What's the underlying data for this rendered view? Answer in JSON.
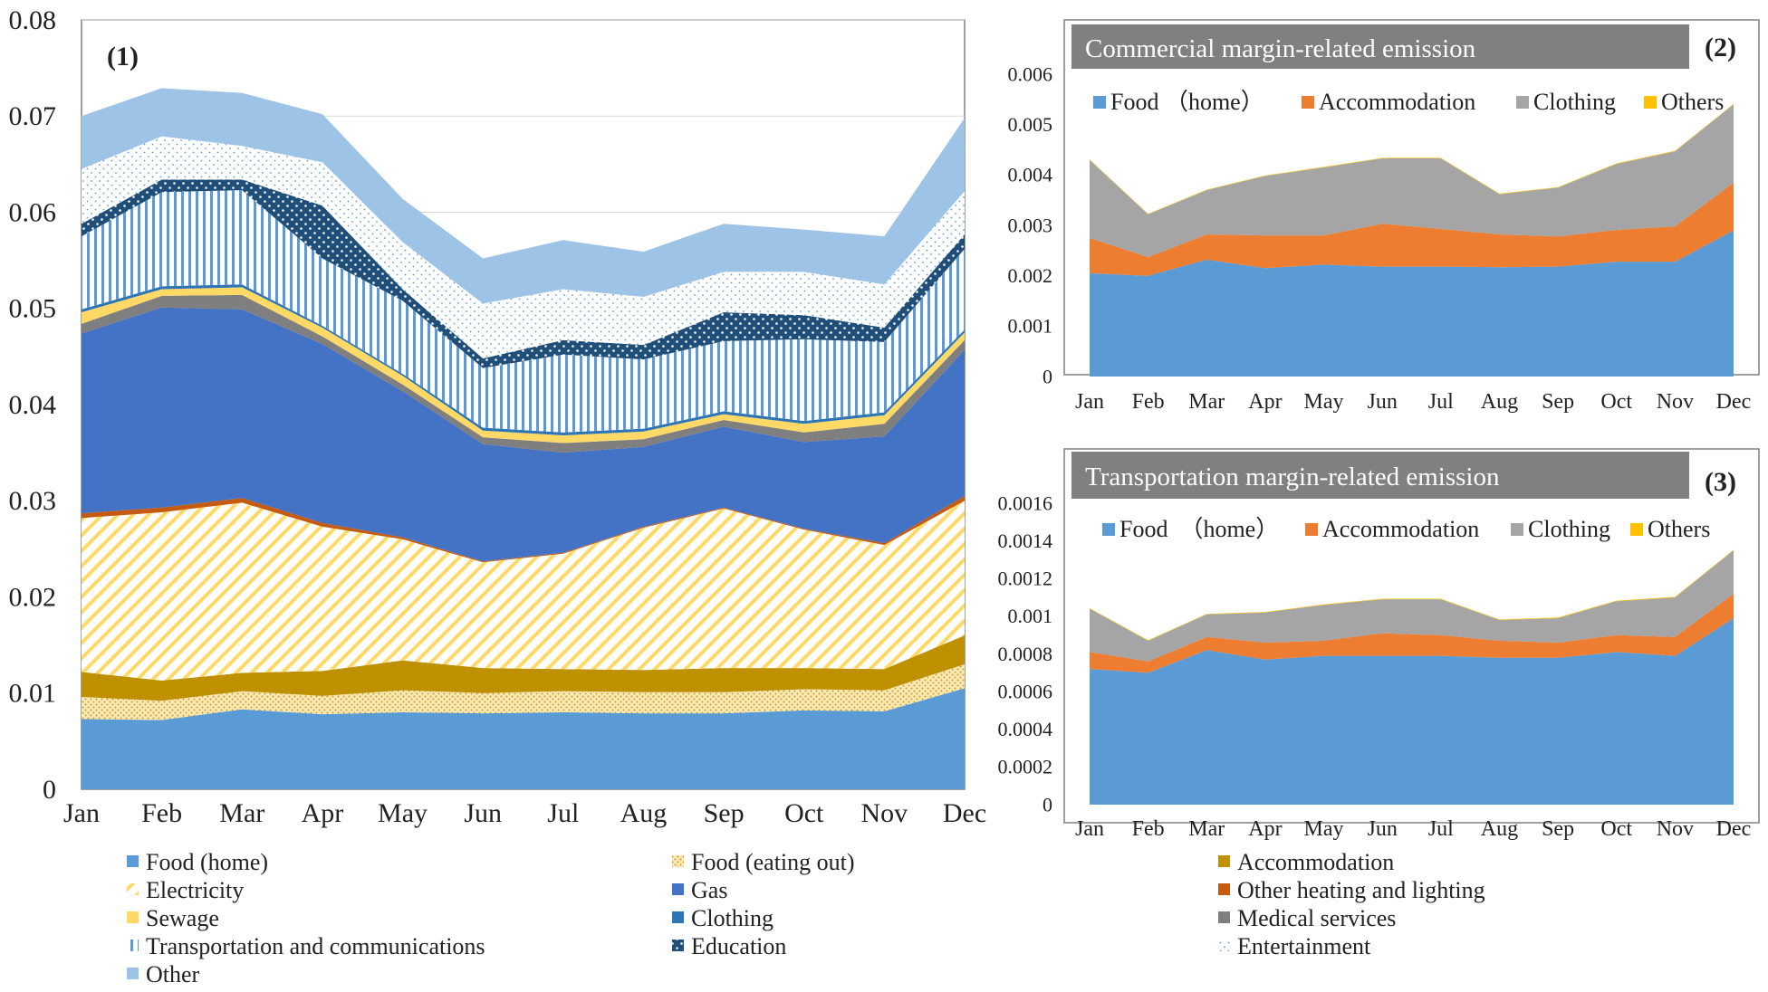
{
  "chart_data": [
    {
      "id": "main",
      "type": "area",
      "stacked": true,
      "panel_label": "(1)",
      "title": "",
      "xlabel": "",
      "ylabel": "",
      "categories": [
        "Jan",
        "Feb",
        "Mar",
        "Apr",
        "May",
        "Jun",
        "Jul",
        "Aug",
        "Sep",
        "Oct",
        "Nov",
        "Dec"
      ],
      "ylim": [
        0,
        0.08
      ],
      "yticks": [
        "0",
        "0.01",
        "0.02",
        "0.03",
        "0.04",
        "0.05",
        "0.06",
        "0.07",
        "0.08"
      ],
      "grid": true,
      "legend_position": "bottom",
      "series": [
        {
          "name": "Food (home)",
          "pattern": "solid",
          "color": "#5b9bd5",
          "values": [
            0.0073,
            0.0072,
            0.0083,
            0.0078,
            0.008,
            0.0079,
            0.008,
            0.0079,
            0.0079,
            0.0082,
            0.0081,
            0.0105
          ]
        },
        {
          "name": "Food (eating out)",
          "pattern": "dots",
          "color": "#f0c04a",
          "values": [
            0.0023,
            0.002,
            0.0019,
            0.0019,
            0.0023,
            0.0021,
            0.0022,
            0.0022,
            0.0022,
            0.0022,
            0.0022,
            0.0025
          ]
        },
        {
          "name": "Accommodation",
          "pattern": "solid",
          "color": "#bf9000",
          "values": [
            0.0026,
            0.0021,
            0.0019,
            0.0026,
            0.0031,
            0.0026,
            0.0023,
            0.0023,
            0.0025,
            0.0022,
            0.0022,
            0.003
          ]
        },
        {
          "name": "Electricity",
          "pattern": "diag",
          "color": "#ffd966",
          "values": [
            0.016,
            0.0175,
            0.0177,
            0.015,
            0.0126,
            0.011,
            0.012,
            0.0148,
            0.0166,
            0.0144,
            0.0129,
            0.014
          ]
        },
        {
          "name": "Other heating and lighting",
          "pattern": "solid",
          "color": "#c55a11",
          "values": [
            0.0005,
            0.0005,
            0.0005,
            0.0004,
            0.0002,
            0.0001,
            0.0001,
            0.0001,
            0.0001,
            0.0001,
            0.0002,
            0.0005
          ]
        },
        {
          "name": "Gas",
          "pattern": "solid",
          "color": "#4472c4",
          "values": [
            0.0187,
            0.0208,
            0.0196,
            0.0186,
            0.0152,
            0.0122,
            0.0104,
            0.0083,
            0.0084,
            0.009,
            0.0111,
            0.0152
          ]
        },
        {
          "name": "Medical services",
          "pattern": "solid",
          "color": "#7f7f7f",
          "values": [
            0.001,
            0.0012,
            0.0015,
            0.0008,
            0.0007,
            0.0007,
            0.001,
            0.0008,
            0.0007,
            0.001,
            0.0013,
            0.001
          ]
        },
        {
          "name": "Sewage",
          "pattern": "solid",
          "color": "#ffd966",
          "values": [
            0.0012,
            0.0007,
            0.0008,
            0.0009,
            0.0009,
            0.0007,
            0.0008,
            0.0008,
            0.0006,
            0.0009,
            0.0009,
            0.0008
          ]
        },
        {
          "name": "Clothing",
          "pattern": "solid",
          "color": "#2e75b6",
          "values": [
            0.0003,
            0.0003,
            0.0003,
            0.0002,
            0.0002,
            0.0003,
            0.0003,
            0.0003,
            0.0003,
            0.0003,
            0.0003,
            0.0003
          ]
        },
        {
          "name": "Transportation and communications",
          "pattern": "vlines",
          "color": "#5b9bd5",
          "values": [
            0.0076,
            0.0098,
            0.0098,
            0.007,
            0.0076,
            0.0062,
            0.0081,
            0.0072,
            0.0073,
            0.0085,
            0.0073,
            0.0084
          ]
        },
        {
          "name": "Education",
          "pattern": "navydots",
          "color": "#1f4e79",
          "values": [
            0.0013,
            0.0013,
            0.0011,
            0.0055,
            0.0012,
            0.001,
            0.0015,
            0.0015,
            0.003,
            0.0025,
            0.0015,
            0.0015
          ]
        },
        {
          "name": "Entertainment",
          "pattern": "lightdots",
          "color": "#bdd7ee",
          "values": [
            0.0057,
            0.0045,
            0.0035,
            0.0045,
            0.0049,
            0.0057,
            0.0053,
            0.005,
            0.0042,
            0.0045,
            0.0045,
            0.0045
          ]
        },
        {
          "name": "Other",
          "pattern": "solid",
          "color": "#9dc3e6",
          "values": [
            0.0055,
            0.005,
            0.0055,
            0.005,
            0.0045,
            0.0047,
            0.0051,
            0.0047,
            0.005,
            0.0044,
            0.005,
            0.0076
          ]
        }
      ]
    },
    {
      "id": "commercial",
      "type": "area",
      "stacked": true,
      "panel_label": "(2)",
      "title": "Commercial margin-related emission",
      "xlabel": "",
      "ylabel": "",
      "categories": [
        "Jan",
        "Feb",
        "Mar",
        "Apr",
        "May",
        "Jun",
        "Jul",
        "Aug",
        "Sep",
        "Oct",
        "Nov",
        "Dec"
      ],
      "ylim": [
        0,
        0.006
      ],
      "yticks": [
        "0",
        "0.001",
        "0.002",
        "0.003",
        "0.004",
        "0.005",
        "0.006"
      ],
      "grid": true,
      "legend_position": "top",
      "series": [
        {
          "name": "Food （home）",
          "color": "#5b9bd5",
          "values": [
            0.00205,
            0.002,
            0.00232,
            0.00215,
            0.00222,
            0.00218,
            0.00218,
            0.00217,
            0.00218,
            0.00228,
            0.00228,
            0.0029
          ]
        },
        {
          "name": "Accommodation",
          "color": "#ed7d31",
          "values": [
            0.0007,
            0.00037,
            0.0005,
            0.00065,
            0.00058,
            0.00085,
            0.00075,
            0.00065,
            0.0006,
            0.00063,
            0.0007,
            0.00095
          ]
        },
        {
          "name": "Clothing",
          "color": "#a5a5a5",
          "values": [
            0.00155,
            0.00085,
            0.00088,
            0.00118,
            0.00135,
            0.0013,
            0.0014,
            0.0008,
            0.00097,
            0.00131,
            0.00149,
            0.00155
          ]
        },
        {
          "name": "Others",
          "color": "#ffc000",
          "values": [
            1e-05,
            1e-05,
            1e-05,
            1e-05,
            1e-05,
            1e-05,
            1e-05,
            1e-05,
            1e-05,
            1e-05,
            1e-05,
            1e-05
          ]
        }
      ]
    },
    {
      "id": "transport",
      "type": "area",
      "stacked": true,
      "panel_label": "(3)",
      "title": "Transportation margin-related emission",
      "xlabel": "",
      "ylabel": "",
      "categories": [
        "Jan",
        "Feb",
        "Mar",
        "Apr",
        "May",
        "Jun",
        "Jul",
        "Aug",
        "Sep",
        "Oct",
        "Nov",
        "Dec"
      ],
      "ylim": [
        0,
        0.0016
      ],
      "yticks": [
        "0",
        "0.0002",
        "0.0004",
        "0.0006",
        "0.0008",
        "0.001",
        "0.0012",
        "0.0014",
        "0.0016"
      ],
      "grid": true,
      "legend_position": "top",
      "series": [
        {
          "name": "Food　（home）",
          "color": "#5b9bd5",
          "values": [
            0.00072,
            0.0007,
            0.00082,
            0.00077,
            0.00079,
            0.00079,
            0.00079,
            0.00078,
            0.00078,
            0.00081,
            0.00079,
            0.00099
          ]
        },
        {
          "name": "Accommodation",
          "color": "#ed7d31",
          "values": [
            9e-05,
            6e-05,
            7e-05,
            9e-05,
            8e-05,
            0.00012,
            0.00011,
            9e-05,
            8e-05,
            9e-05,
            0.0001,
            0.00013
          ]
        },
        {
          "name": "Clothing",
          "color": "#a5a5a5",
          "values": [
            0.00023,
            0.00011,
            0.00012,
            0.00016,
            0.00019,
            0.00018,
            0.00019,
            0.00011,
            0.00013,
            0.00018,
            0.00021,
            0.00023
          ]
        },
        {
          "name": "Others",
          "color": "#ffc000",
          "values": [
            3e-06,
            3e-06,
            3e-06,
            3e-06,
            3e-06,
            3e-06,
            3e-06,
            3e-06,
            3e-06,
            3e-06,
            3e-06,
            3e-06
          ]
        }
      ]
    }
  ],
  "legend_main": {
    "col1": [
      "Food (home)",
      "Electricity",
      "Sewage",
      "Transportation and communications",
      "Other"
    ],
    "col2": [
      "Food (eating out)",
      "Gas",
      "Clothing",
      "Education"
    ],
    "col3": [
      "Accommodation",
      "Other heating and lighting",
      "Medical services",
      "Entertainment"
    ]
  },
  "colors": {
    "food_home": "#5b9bd5",
    "accommodation_orange": "#ed7d31",
    "clothing_gray": "#a5a5a5",
    "others_gold": "#ffc000",
    "title_bar": "#808080"
  }
}
